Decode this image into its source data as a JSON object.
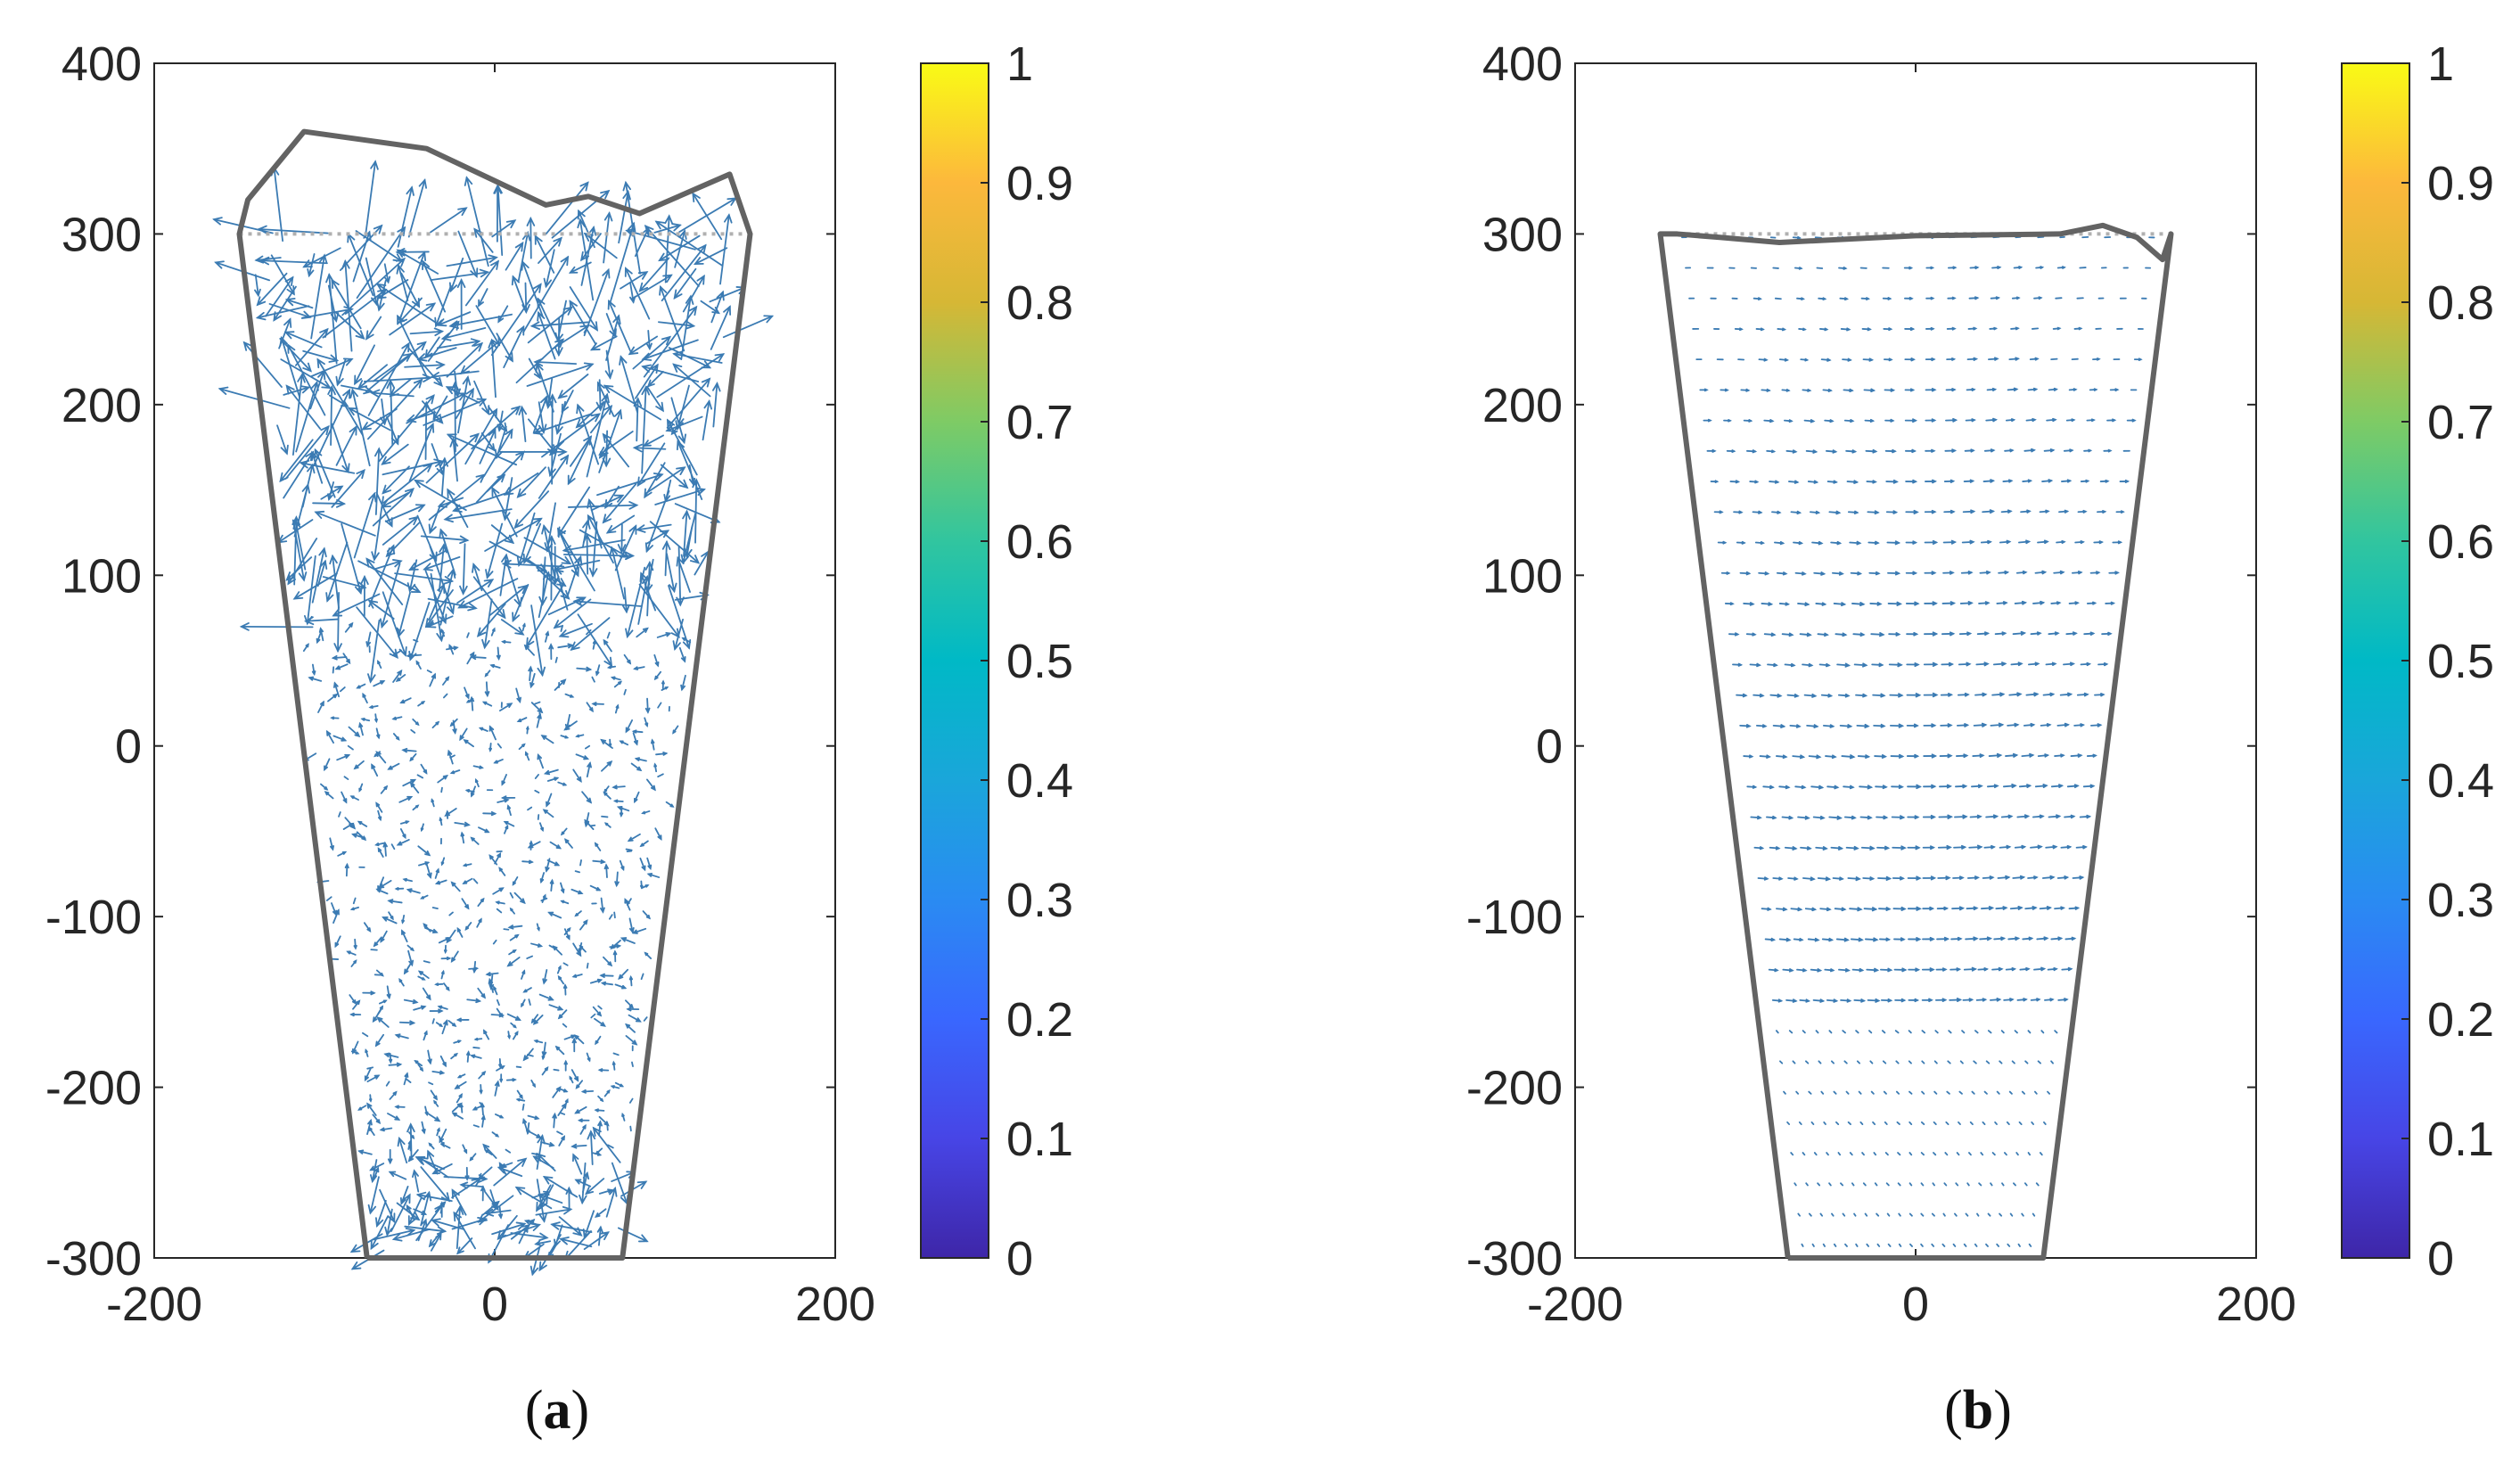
{
  "chart_data": [
    {
      "panel": "(a)",
      "panel_letter": "a",
      "type": "quiver",
      "xlim": [
        -200,
        200
      ],
      "ylim": [
        -300,
        400
      ],
      "x_ticks": [
        "-200",
        "0",
        "200"
      ],
      "y_ticks": [
        "-300",
        "-200",
        "-100",
        "0",
        "100",
        "200",
        "300",
        "400"
      ],
      "colorbar": {
        "range": [
          0,
          1
        ],
        "ticks": [
          "0",
          "0.1",
          "0.2",
          "0.3",
          "0.4",
          "0.5",
          "0.6",
          "0.7",
          "0.8",
          "0.9",
          "1"
        ],
        "colormap": "parula"
      },
      "reference_outline": [
        [
          -150,
          300
        ],
        [
          150,
          300
        ]
      ],
      "outline": [
        [
          -75,
          -300
        ],
        [
          75,
          -300
        ],
        [
          150,
          300
        ],
        [
          138,
          335
        ],
        [
          85,
          312
        ],
        [
          55,
          322
        ],
        [
          30,
          317
        ],
        [
          -40,
          350
        ],
        [
          -112,
          360
        ],
        [
          -145,
          320
        ],
        [
          -150,
          300
        ],
        [
          -75,
          -300
        ]
      ],
      "vector_field": {
        "style": "noisy",
        "arrow_color": "#3b7bb3",
        "magnitude_bottom": 10,
        "magnitude_middle": 6,
        "magnitude_top": 28
      }
    },
    {
      "panel": "(b)",
      "panel_letter": "b",
      "type": "quiver",
      "xlim": [
        -200,
        200
      ],
      "ylim": [
        -300,
        400
      ],
      "x_ticks": [
        "-200",
        "0",
        "200"
      ],
      "y_ticks": [
        "-300",
        "-200",
        "-100",
        "0",
        "100",
        "200",
        "300",
        "400"
      ],
      "colorbar": {
        "range": [
          0,
          1
        ],
        "ticks": [
          "0",
          "0.1",
          "0.2",
          "0.3",
          "0.4",
          "0.5",
          "0.6",
          "0.7",
          "0.8",
          "0.9",
          "1"
        ],
        "colormap": "parula"
      },
      "reference_outline": [
        [
          -150,
          300
        ],
        [
          150,
          300
        ]
      ],
      "outline": [
        [
          -75,
          -300
        ],
        [
          75,
          -300
        ],
        [
          150,
          300
        ],
        [
          145,
          285
        ],
        [
          130,
          298
        ],
        [
          110,
          305
        ],
        [
          85,
          300
        ],
        [
          0,
          299
        ],
        [
          -80,
          295
        ],
        [
          -115,
          298
        ],
        [
          -140,
          300
        ],
        [
          -150,
          300
        ],
        [
          -75,
          -300
        ]
      ],
      "vector_field": {
        "style": "smooth",
        "arrow_color": "#3b7bb3",
        "magnitude_bottom": 2,
        "magnitude_middle": 6,
        "magnitude_top": 8
      }
    }
  ]
}
